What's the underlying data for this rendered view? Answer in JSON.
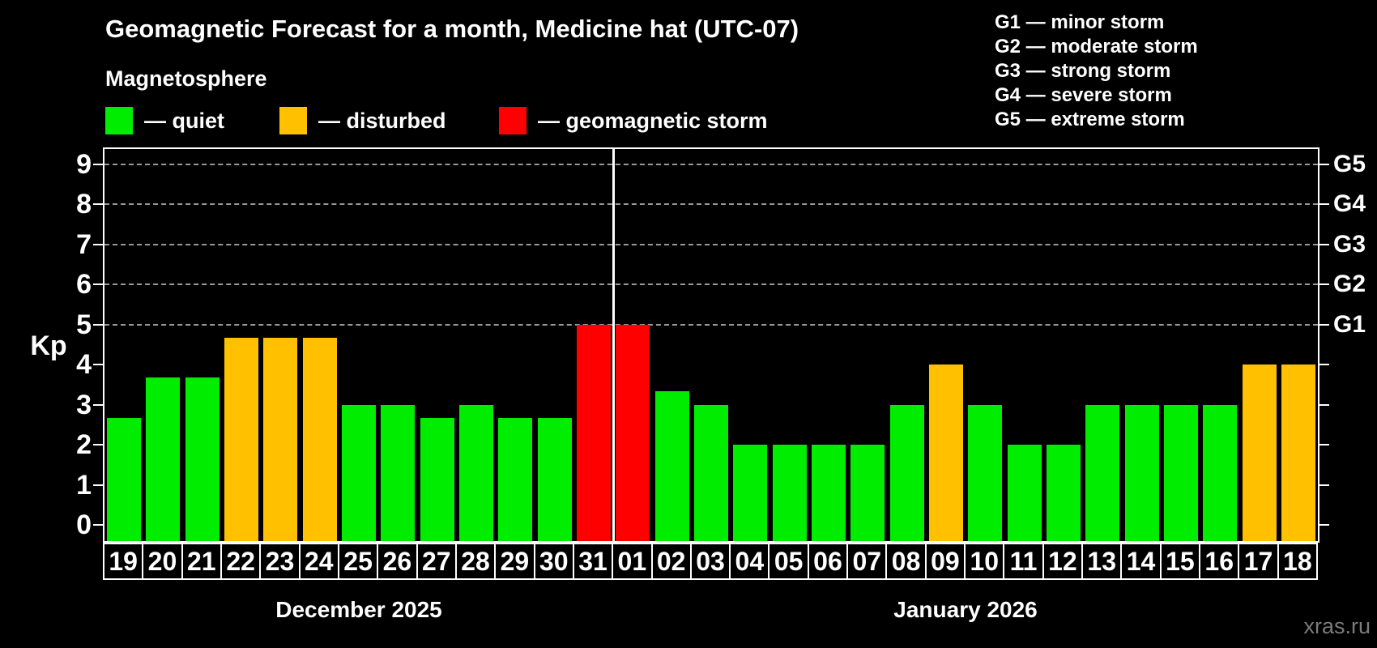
{
  "title": "Geomagnetic Forecast for a month, Medicine hat (UTC-07)",
  "subtitle": "Magnetosphere",
  "legend": {
    "quiet": {
      "label": "— quiet",
      "color": "#00ed00"
    },
    "disturbed": {
      "label": "— disturbed",
      "color": "#ffc000"
    },
    "storm": {
      "label": "— geomagnetic storm",
      "color": "#ff0000"
    }
  },
  "g_legend": {
    "g1": "G1 — minor storm",
    "g2": "G2 — moderate storm",
    "g3": "G3 — strong storm",
    "g4": "G4 — severe storm",
    "g5": "G5 — extreme storm"
  },
  "watermark": "xras.ru",
  "chart_data": {
    "type": "bar",
    "title": "Geomagnetic Forecast for a month, Medicine hat (UTC-07)",
    "ylabel": "Kp",
    "ylim": [
      -0.5,
      9.5
    ],
    "y_ticks": [
      0,
      1,
      2,
      3,
      4,
      5,
      6,
      7,
      8,
      9
    ],
    "gridlines_at": [
      5,
      6,
      7,
      8,
      9
    ],
    "right_axis_labels": [
      {
        "kp": 5,
        "label": "G1"
      },
      {
        "kp": 6,
        "label": "G2"
      },
      {
        "kp": 7,
        "label": "G3"
      },
      {
        "kp": 8,
        "label": "G4"
      },
      {
        "kp": 9,
        "label": "G5"
      }
    ],
    "months": [
      {
        "label": "December 2025",
        "days": 13
      },
      {
        "label": "January 2026",
        "days": 18
      }
    ],
    "categories": [
      "19",
      "20",
      "21",
      "22",
      "23",
      "24",
      "25",
      "26",
      "27",
      "28",
      "29",
      "30",
      "31",
      "01",
      "02",
      "03",
      "04",
      "05",
      "06",
      "07",
      "08",
      "09",
      "10",
      "11",
      "12",
      "13",
      "14",
      "15",
      "16",
      "17",
      "18"
    ],
    "values": [
      2.67,
      3.67,
      3.67,
      4.67,
      4.67,
      4.67,
      3,
      3,
      2.67,
      3,
      2.67,
      2.67,
      5,
      5,
      3.33,
      3,
      2,
      2,
      2,
      2,
      3,
      4,
      3,
      2,
      2,
      3,
      3,
      3,
      3,
      4,
      4
    ],
    "status": [
      "quiet",
      "quiet",
      "quiet",
      "disturbed",
      "disturbed",
      "disturbed",
      "quiet",
      "quiet",
      "quiet",
      "quiet",
      "quiet",
      "quiet",
      "storm",
      "storm",
      "quiet",
      "quiet",
      "quiet",
      "quiet",
      "quiet",
      "quiet",
      "quiet",
      "disturbed",
      "quiet",
      "quiet",
      "quiet",
      "quiet",
      "quiet",
      "quiet",
      "quiet",
      "disturbed",
      "disturbed"
    ]
  }
}
